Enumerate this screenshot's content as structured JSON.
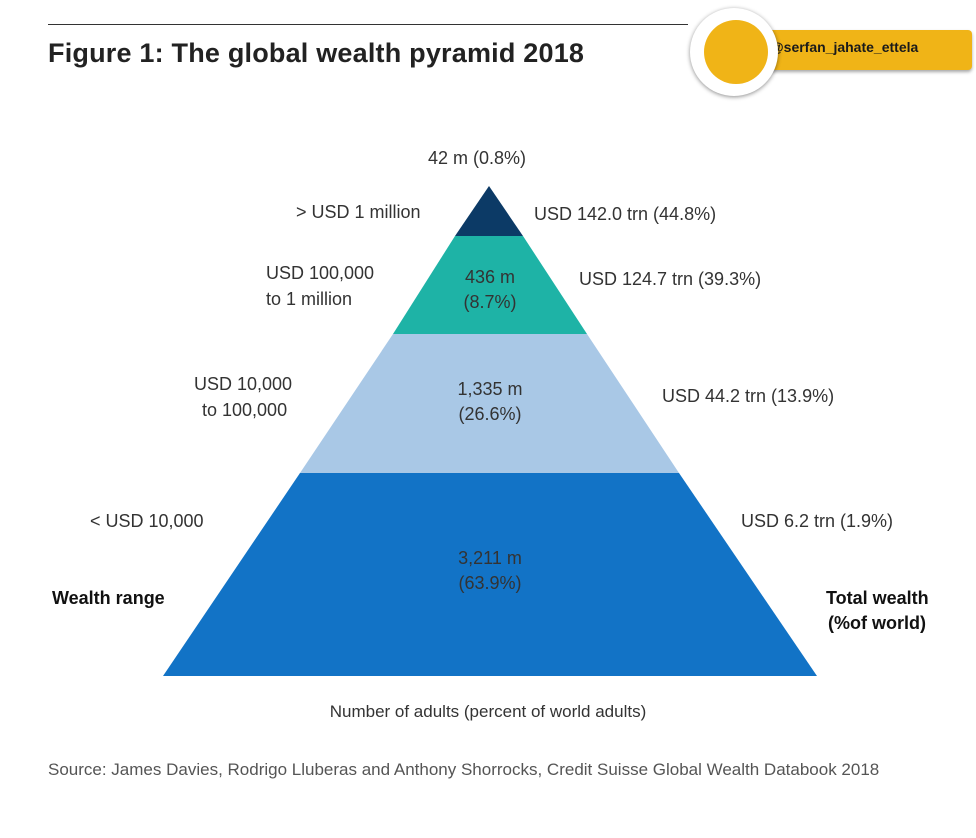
{
  "title": "Figure 1: The global wealth pyramid 2018",
  "watermark": {
    "handle": "@serfan_jahate_ettela"
  },
  "colors": {
    "tier_top": "#0c3a66",
    "tier_2": "#1eb3a6",
    "tier_3": "#a9c8e6",
    "tier_base": "#1273c6"
  },
  "pyramid": {
    "tiers": [
      {
        "range": "> USD 1 million",
        "adults_line1": "42 m (0.8%)",
        "adults_line2": "",
        "wealth": "USD 142.0 trn (44.8%)"
      },
      {
        "range_line1": "USD 100,000",
        "range_line2": "to 1 million",
        "adults_line1": "436 m",
        "adults_line2": "(8.7%)",
        "wealth": "USD 124.7 trn (39.3%)"
      },
      {
        "range_line1": "USD 10,000",
        "range_line2": "to 100,000",
        "adults_line1": "1,335 m",
        "adults_line2": "(26.6%)",
        "wealth": "USD 44.2 trn (13.9%)"
      },
      {
        "range": "< USD 10,000",
        "adults_line1": "3,211 m",
        "adults_line2": "(63.9%)",
        "wealth": "USD 6.2 trn (1.9%)"
      }
    ],
    "left_header": "Wealth range",
    "right_header_line1": "Total wealth",
    "right_header_line2": "(%of world)",
    "axis_caption": "Number of adults (percent of world adults)"
  },
  "source_text": "Source: James Davies, Rodrigo Lluberas and Anthony Shorrocks, Credit Suisse Global Wealth Databook 2018"
}
